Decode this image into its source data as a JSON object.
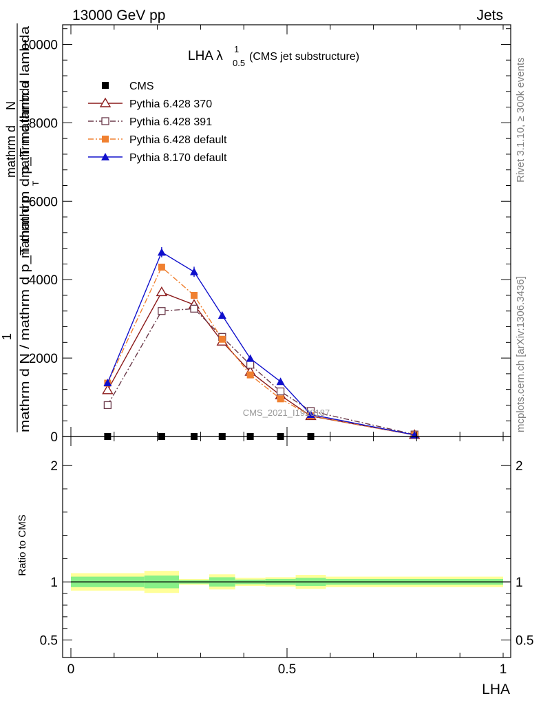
{
  "header": {
    "left": "13000 GeV pp",
    "right": "Jets"
  },
  "side_labels": {
    "rivet": "Rivet 3.1.10, ≥ 300k events",
    "mcplots": "mcplots.cern.ch [arXiv:1306.3436]"
  },
  "watermark": "CMS_2021_I1920187",
  "chart_data": [
    {
      "type": "line",
      "title_main": "LHA λ",
      "title_sup": "1",
      "title_sub": "0.5",
      "title_suffix": " (CMS jet substructure)",
      "ylabel_parts": [
        "mathrm d",
        "N",
        "mathrm d p",
        "T",
        " mathrm d lambda"
      ],
      "ylabel_denominator": "mathrm d N / mathrm d p_T mathrm d p_T mathrm d lambda",
      "ylabel_one": "1",
      "xlim": [
        0,
        1
      ],
      "ylim": [
        0,
        10500
      ],
      "yticks": [
        {
          "value": 0,
          "label": "0"
        },
        {
          "value": 2000,
          "label": "2000"
        },
        {
          "value": 4000,
          "label": "4000"
        },
        {
          "value": 6000,
          "label": "6000"
        },
        {
          "value": 8000,
          "label": "8000"
        },
        {
          "value": 10000,
          "label": "10000"
        }
      ],
      "grid": false,
      "legend_position": "top-left",
      "series": [
        {
          "name": "CMS",
          "color": "#000000",
          "marker": "filled-square",
          "line": "none",
          "x": [
            0.085,
            0.21,
            0.285,
            0.35,
            0.415,
            0.485,
            0.555
          ],
          "y": [
            0,
            0,
            0,
            0,
            0,
            0,
            0
          ]
        },
        {
          "name": "Pythia 6.428 370",
          "color": "#8b1a1a",
          "marker": "open-triangle",
          "line": "solid",
          "x": [
            0.085,
            0.21,
            0.285,
            0.35,
            0.415,
            0.485,
            0.555,
            0.795
          ],
          "y": [
            1180,
            3680,
            3360,
            2420,
            1650,
            1050,
            520,
            40
          ]
        },
        {
          "name": "Pythia 6.428 391",
          "color": "#6b3a4a",
          "marker": "open-square",
          "line": "dash-dot",
          "x": [
            0.085,
            0.21,
            0.285,
            0.35,
            0.415,
            0.485,
            0.555,
            0.795
          ],
          "y": [
            800,
            3200,
            3260,
            2540,
            1830,
            1150,
            650,
            50
          ]
        },
        {
          "name": "Pythia 6.428 default",
          "color": "#f08030",
          "marker": "filled-square",
          "line": "dash-dot",
          "x": [
            0.085,
            0.21,
            0.285,
            0.35,
            0.415,
            0.485,
            0.555,
            0.795
          ],
          "y": [
            1360,
            4320,
            3600,
            2480,
            1570,
            960,
            530,
            40
          ]
        },
        {
          "name": "Pythia 8.170 default",
          "color": "#1010cc",
          "marker": "filled-triangle",
          "line": "solid",
          "x": [
            0.085,
            0.21,
            0.285,
            0.35,
            0.415,
            0.485,
            0.555,
            0.795
          ],
          "y": [
            1370,
            4700,
            4200,
            3090,
            1990,
            1400,
            560,
            40
          ],
          "yerr": [
            60,
            130,
            130,
            90,
            70,
            50,
            20,
            0
          ]
        }
      ]
    },
    {
      "type": "ratio",
      "ylabel": "Ratio to CMS",
      "xlabel": "LHA",
      "xlim": [
        0,
        1
      ],
      "ylim": [
        0.35,
        2.25
      ],
      "yticks": [
        {
          "value": 0.5,
          "label": "0.5"
        },
        {
          "value": 1,
          "label": "1"
        },
        {
          "value": 2,
          "label": "2"
        }
      ],
      "xticks": [
        {
          "value": 0,
          "label": "0"
        },
        {
          "value": 0.5,
          "label": "0.5"
        },
        {
          "value": 1,
          "label": "1"
        }
      ],
      "bands": [
        {
          "x0": 0.0,
          "x1": 0.17,
          "inner": [
            0.955,
            1.045
          ],
          "outer": [
            0.925,
            1.075
          ]
        },
        {
          "x0": 0.17,
          "x1": 0.25,
          "inner": [
            0.945,
            1.055
          ],
          "outer": [
            0.905,
            1.095
          ]
        },
        {
          "x0": 0.25,
          "x1": 0.32,
          "inner": [
            0.985,
            1.015
          ],
          "outer": [
            0.975,
            1.025
          ]
        },
        {
          "x0": 0.32,
          "x1": 0.38,
          "inner": [
            0.96,
            1.04
          ],
          "outer": [
            0.935,
            1.065
          ]
        },
        {
          "x0": 0.38,
          "x1": 0.45,
          "inner": [
            0.98,
            1.02
          ],
          "outer": [
            0.965,
            1.035
          ]
        },
        {
          "x0": 0.45,
          "x1": 0.52,
          "inner": [
            0.975,
            1.025
          ],
          "outer": [
            0.96,
            1.04
          ]
        },
        {
          "x0": 0.52,
          "x1": 0.59,
          "inner": [
            0.965,
            1.035
          ],
          "outer": [
            0.94,
            1.06
          ]
        },
        {
          "x0": 0.59,
          "x1": 1.0,
          "inner": [
            0.975,
            1.025
          ],
          "outer": [
            0.955,
            1.045
          ]
        }
      ],
      "reference_line": 1
    }
  ]
}
